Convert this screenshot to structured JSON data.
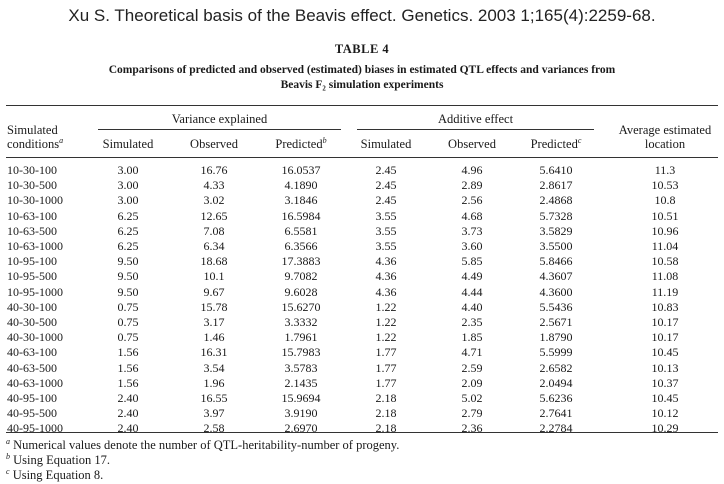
{
  "header_citation": "Xu S. Theoretical basis of the Beavis effect. Genetics. 2003 1;165(4):2259-68.",
  "table": {
    "label": "TABLE 4",
    "caption_line1": "Comparisons of predicted and observed (estimated) biases in estimated QTL effects and variances from",
    "caption_line2": "Beavis F₂ simulation experiments",
    "group_headers": {
      "variance": "Variance explained",
      "additive": "Additive effect"
    },
    "col_headers": {
      "simulated_conditions_l1": "Simulated",
      "simulated_conditions_l2": "conditions",
      "simulated_conditions_mark": "a",
      "var_simulated": "Simulated",
      "var_observed": "Observed",
      "var_predicted": "Predicted",
      "var_predicted_mark": "b",
      "add_simulated": "Simulated",
      "add_observed": "Observed",
      "add_predicted": "Predicted",
      "add_predicted_mark": "c",
      "location_l1": "Average estimated",
      "location_l2": "location"
    },
    "rows": [
      [
        "10-30-100",
        "3.00",
        "16.76",
        "16.0537",
        "2.45",
        "4.96",
        "5.6410",
        "11.3"
      ],
      [
        "10-30-500",
        "3.00",
        "4.33",
        "4.1890",
        "2.45",
        "2.89",
        "2.8617",
        "10.53"
      ],
      [
        "10-30-1000",
        "3.00",
        "3.02",
        "3.1846",
        "2.45",
        "2.56",
        "2.4868",
        "10.8"
      ],
      [
        "10-63-100",
        "6.25",
        "12.65",
        "16.5984",
        "3.55",
        "4.68",
        "5.7328",
        "10.51"
      ],
      [
        "10-63-500",
        "6.25",
        "7.08",
        "6.5581",
        "3.55",
        "3.73",
        "3.5829",
        "10.96"
      ],
      [
        "10-63-1000",
        "6.25",
        "6.34",
        "6.3566",
        "3.55",
        "3.60",
        "3.5500",
        "11.04"
      ],
      [
        "10-95-100",
        "9.50",
        "18.68",
        "17.3883",
        "4.36",
        "5.85",
        "5.8466",
        "10.58"
      ],
      [
        "10-95-500",
        "9.50",
        "10.1",
        "9.7082",
        "4.36",
        "4.49",
        "4.3607",
        "11.08"
      ],
      [
        "10-95-1000",
        "9.50",
        "9.67",
        "9.6028",
        "4.36",
        "4.44",
        "4.3600",
        "11.19"
      ],
      [
        "40-30-100",
        "0.75",
        "15.78",
        "15.6270",
        "1.22",
        "4.40",
        "5.5436",
        "10.83"
      ],
      [
        "40-30-500",
        "0.75",
        "3.17",
        "3.3332",
        "1.22",
        "2.35",
        "2.5671",
        "10.17"
      ],
      [
        "40-30-1000",
        "0.75",
        "1.46",
        "1.7961",
        "1.22",
        "1.85",
        "1.8790",
        "10.17"
      ],
      [
        "40-63-100",
        "1.56",
        "16.31",
        "15.7983",
        "1.77",
        "4.71",
        "5.5999",
        "10.45"
      ],
      [
        "40-63-500",
        "1.56",
        "3.54",
        "3.5783",
        "1.77",
        "2.59",
        "2.6582",
        "10.13"
      ],
      [
        "40-63-1000",
        "1.56",
        "1.96",
        "2.1435",
        "1.77",
        "2.09",
        "2.0494",
        "10.37"
      ],
      [
        "40-95-100",
        "2.40",
        "16.55",
        "15.9694",
        "2.18",
        "5.02",
        "5.6236",
        "10.45"
      ],
      [
        "40-95-500",
        "2.40",
        "3.97",
        "3.9190",
        "2.18",
        "2.79",
        "2.7641",
        "10.12"
      ],
      [
        "40-95-1000",
        "2.40",
        "2.58",
        "2.6970",
        "2.18",
        "2.36",
        "2.2784",
        "10.29"
      ]
    ]
  },
  "footnotes": [
    {
      "mark": "a",
      "text": "Numerical values denote the number of QTL-heritability-number of progeny."
    },
    {
      "mark": "b",
      "text": "Using Equation 17."
    },
    {
      "mark": "c",
      "text": "Using Equation 8."
    }
  ]
}
